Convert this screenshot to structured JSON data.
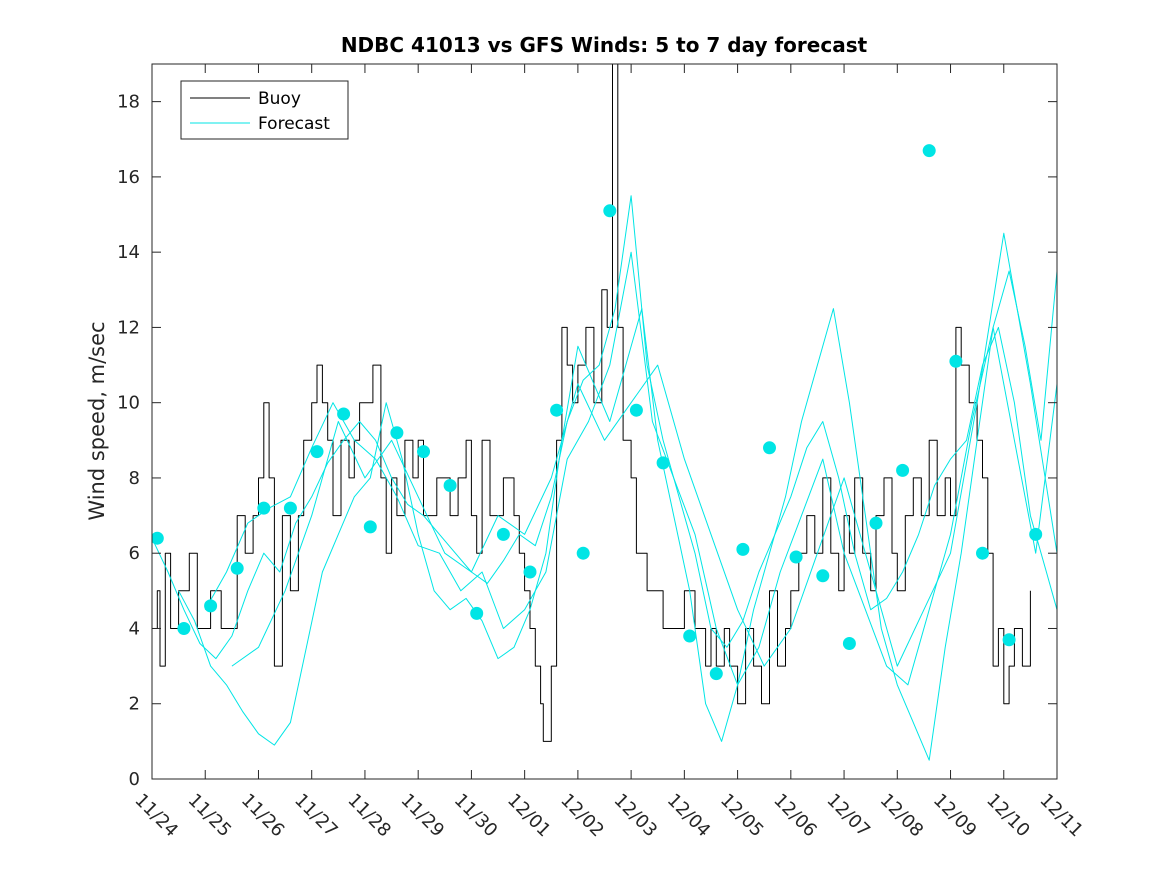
{
  "chart_data": {
    "type": "line",
    "title": "NDBC 41013 vs GFS Winds: 5 to 7 day forecast",
    "xlabel": "",
    "ylabel": "Wind speed, m/sec",
    "xlim": [
      0,
      17
    ],
    "ylim": [
      0,
      19
    ],
    "yticks": [
      0,
      2,
      4,
      6,
      8,
      10,
      12,
      14,
      16,
      18
    ],
    "xtick_labels": [
      "11/24",
      "11/25",
      "11/26",
      "11/27",
      "11/28",
      "11/29",
      "11/30",
      "12/01",
      "12/02",
      "12/03",
      "12/04",
      "12/05",
      "12/06",
      "12/07",
      "12/08",
      "12/09",
      "12/10",
      "12/11"
    ],
    "grid": false,
    "legend": {
      "position": "top-left",
      "entries": [
        "Buoy",
        "Forecast"
      ]
    },
    "colors": {
      "buoy": "#000000",
      "forecast": "#00e5e5",
      "marker": "#00e5e5"
    },
    "series": [
      {
        "name": "Buoy",
        "style": "step",
        "x": [
          0,
          0.1,
          0.15,
          0.25,
          0.35,
          0.45,
          0.5,
          0.6,
          0.7,
          0.85,
          1.0,
          1.1,
          1.3,
          1.5,
          1.6,
          1.75,
          1.9,
          2.0,
          2.1,
          2.2,
          2.3,
          2.45,
          2.6,
          2.75,
          2.85,
          3.0,
          3.1,
          3.2,
          3.3,
          3.4,
          3.55,
          3.7,
          3.8,
          3.9,
          4.0,
          4.15,
          4.3,
          4.4,
          4.5,
          4.6,
          4.75,
          4.9,
          5.0,
          5.1,
          5.2,
          5.35,
          5.5,
          5.6,
          5.75,
          5.9,
          6.0,
          6.1,
          6.2,
          6.35,
          6.5,
          6.6,
          6.7,
          6.8,
          6.9,
          7.0,
          7.1,
          7.2,
          7.3,
          7.35,
          7.5,
          7.6,
          7.7,
          7.8,
          7.9,
          8.0,
          8.15,
          8.3,
          8.45,
          8.55,
          8.65,
          8.75,
          8.85,
          9.0,
          9.1,
          9.3,
          9.45,
          9.6,
          9.8,
          10.0,
          10.2,
          10.4,
          10.5,
          10.6,
          10.75,
          10.85,
          11.0,
          11.15,
          11.3,
          11.45,
          11.6,
          11.75,
          11.9,
          12.0,
          12.15,
          12.3,
          12.45,
          12.6,
          12.75,
          12.9,
          13.0,
          13.1,
          13.2,
          13.35,
          13.5,
          13.6,
          13.75,
          13.9,
          14.0,
          14.15,
          14.3,
          14.45,
          14.6,
          14.75,
          14.9,
          15.0,
          15.1,
          15.2,
          15.35,
          15.5,
          15.6,
          15.7,
          15.8,
          15.9,
          16.0,
          16.1,
          16.2,
          16.35,
          16.5
        ],
        "y": [
          4,
          5,
          3,
          6,
          4,
          4,
          5,
          5,
          6,
          4,
          4,
          5,
          4,
          4,
          7,
          6,
          7,
          8,
          10,
          8,
          3,
          7,
          5,
          7,
          9,
          10,
          11,
          10,
          9,
          7,
          9,
          8,
          9,
          10,
          10,
          11,
          8,
          6,
          8,
          7,
          9,
          8,
          9,
          7,
          7,
          8,
          8,
          7,
          8,
          9,
          7,
          6,
          9,
          7,
          7,
          8,
          8,
          7,
          6,
          5,
          4,
          3,
          2,
          1,
          3,
          9,
          12,
          11,
          10,
          11,
          12,
          10,
          13,
          12,
          19,
          12,
          9,
          8,
          6,
          5,
          5,
          4,
          4,
          5,
          4,
          3,
          4,
          3,
          4,
          3,
          2,
          4,
          3,
          2,
          5,
          3,
          4,
          5,
          6,
          7,
          6,
          8,
          6,
          5,
          7,
          6,
          8,
          6,
          5,
          7,
          8,
          6,
          5,
          7,
          8,
          7,
          9,
          7,
          8,
          7,
          12,
          11,
          10,
          9,
          8,
          6,
          3,
          4,
          2,
          3,
          4,
          3,
          5
        ]
      },
      {
        "name": "Forecast run 1",
        "x": [
          0,
          0.3,
          0.6,
          0.9,
          1.2,
          1.5,
          1.8,
          2.1,
          2.4,
          2.7,
          3.0,
          3.3,
          3.6,
          3.9,
          4.2,
          4.5,
          4.8,
          5.1,
          5.4,
          5.7,
          6.0,
          6.3,
          6.6,
          6.9,
          7.2,
          7.5,
          7.8,
          8.1,
          8.4,
          8.7,
          9.0,
          9.3,
          9.6,
          9.9,
          10.2,
          10.5,
          10.8,
          11.1,
          11.4,
          11.7,
          12.0,
          12.3,
          12.6,
          12.9,
          13.2,
          13.5,
          13.8,
          14.1,
          14.4,
          14.7,
          15.0,
          15.3,
          15.6,
          15.9,
          16.2,
          16.5,
          16.8,
          17.0
        ],
        "y": [
          6.4,
          5.5,
          4.5,
          3.6,
          3.2,
          3.8,
          5.0,
          6.0,
          5.5,
          6.8,
          7.5,
          8.4,
          9.0,
          9.5,
          9.0,
          8.0,
          7.3,
          7.0,
          6.5,
          6.0,
          5.5,
          5.2,
          5.8,
          6.5,
          6.2,
          7.5,
          9.5,
          10.6,
          11.0,
          12.5,
          15.5,
          11.0,
          9.0,
          7.5,
          6.0,
          4.0,
          3.5,
          4.2,
          5.5,
          6.5,
          7.5,
          8.8,
          9.5,
          8.0,
          6.0,
          4.5,
          4.8,
          5.5,
          6.5,
          7.8,
          8.5,
          9.0,
          11.0,
          12.0,
          10.0,
          7.0,
          5.5,
          4.5
        ]
      },
      {
        "name": "Forecast run 2",
        "x": [
          0.5,
          0.8,
          1.1,
          1.4,
          1.7,
          2.0,
          2.3,
          2.6,
          2.9,
          3.2,
          3.5,
          3.8,
          4.1,
          4.4,
          4.7,
          5.0,
          5.3,
          5.6,
          5.9,
          6.2,
          6.5,
          6.8,
          7.1,
          7.4,
          7.7,
          8.0,
          8.3,
          8.6,
          8.9,
          9.2,
          9.5,
          9.8,
          10.1,
          10.4,
          10.7,
          11.0,
          11.3,
          11.6,
          11.9,
          12.2,
          12.5,
          12.8,
          13.1,
          13.4,
          13.7,
          14.0,
          14.3,
          14.6,
          14.9,
          15.2,
          15.5,
          15.8,
          16.1,
          16.4,
          16.7,
          17.0
        ],
        "y": [
          5.0,
          4.2,
          3.0,
          2.5,
          1.8,
          1.2,
          0.9,
          1.5,
          3.5,
          5.5,
          6.5,
          7.5,
          8.0,
          10.0,
          8.5,
          6.5,
          5.0,
          4.5,
          4.8,
          4.2,
          3.2,
          3.5,
          4.5,
          6.0,
          9.0,
          11.5,
          10.5,
          9.5,
          11.0,
          12.5,
          9.0,
          7.0,
          5.0,
          2.0,
          1.0,
          2.5,
          4.5,
          6.0,
          7.5,
          9.5,
          11.0,
          12.5,
          10.0,
          7.0,
          4.0,
          2.5,
          1.5,
          0.5,
          3.5,
          6.0,
          9.0,
          12.0,
          13.5,
          11.5,
          9.0,
          13.5
        ]
      },
      {
        "name": "Forecast run 3",
        "x": [
          1.0,
          1.4,
          1.8,
          2.2,
          2.6,
          3.0,
          3.4,
          3.8,
          4.2,
          4.6,
          5.0,
          5.4,
          5.8,
          6.2,
          6.6,
          7.0,
          7.4,
          7.8,
          8.2,
          8.6,
          9.0,
          9.4,
          9.8,
          10.2,
          10.6,
          11.0,
          11.4,
          11.8,
          12.2,
          12.6,
          13.0,
          13.4,
          13.8,
          14.2,
          14.6,
          15.0,
          15.4,
          15.8,
          16.2,
          16.6,
          17.0
        ],
        "y": [
          4.5,
          5.5,
          6.8,
          7.2,
          7.5,
          8.8,
          10.0,
          9.0,
          8.5,
          7.5,
          6.2,
          6.0,
          5.0,
          5.5,
          4.0,
          4.5,
          5.5,
          8.5,
          9.5,
          11.0,
          14.0,
          9.5,
          8.0,
          6.5,
          4.0,
          2.5,
          3.5,
          5.5,
          7.0,
          8.5,
          6.0,
          4.5,
          3.0,
          2.5,
          4.5,
          6.5,
          9.5,
          12.0,
          9.0,
          6.0,
          10.5
        ]
      },
      {
        "name": "Forecast run 4",
        "x": [
          1.5,
          2.0,
          2.5,
          3.0,
          3.5,
          4.0,
          4.5,
          5.0,
          5.5,
          6.0,
          6.5,
          7.0,
          7.5,
          8.0,
          8.5,
          9.0,
          9.5,
          10.0,
          10.5,
          11.0,
          11.5,
          12.0,
          12.5,
          13.0,
          13.5,
          14.0,
          14.5,
          15.0,
          15.5,
          16.0,
          16.5,
          17.0
        ],
        "y": [
          3.0,
          3.5,
          5.0,
          7.0,
          9.5,
          8.0,
          9.0,
          7.5,
          6.0,
          5.5,
          7.0,
          6.5,
          8.0,
          10.5,
          9.0,
          10.0,
          11.0,
          8.5,
          6.5,
          4.5,
          3.0,
          4.0,
          6.0,
          8.0,
          5.5,
          3.0,
          4.5,
          6.0,
          10.0,
          14.5,
          10.5,
          6.0
        ]
      }
    ],
    "markers": {
      "name": "Forecast points",
      "x": [
        0.1,
        0.6,
        1.1,
        1.6,
        2.1,
        2.6,
        3.1,
        3.6,
        4.1,
        4.6,
        5.1,
        5.6,
        6.1,
        6.6,
        7.1,
        7.6,
        8.1,
        8.6,
        9.1,
        9.6,
        10.1,
        10.6,
        11.1,
        11.6,
        12.1,
        12.6,
        13.1,
        13.6,
        14.1,
        14.6,
        15.1,
        15.6,
        16.1,
        16.6
      ],
      "y": [
        6.4,
        4.0,
        4.6,
        5.6,
        7.2,
        7.2,
        8.7,
        9.7,
        6.7,
        9.2,
        8.7,
        7.8,
        4.4,
        6.5,
        5.5,
        9.8,
        6.0,
        15.1,
        9.8,
        8.4,
        3.8,
        2.8,
        6.1,
        8.8,
        5.9,
        5.4,
        3.6,
        6.8,
        8.2,
        16.7,
        11.1,
        6.0,
        3.7,
        6.5
      ]
    }
  }
}
